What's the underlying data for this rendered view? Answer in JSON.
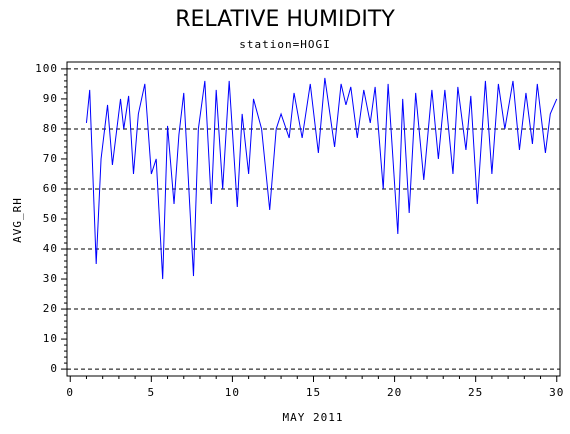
{
  "chart_data": {
    "type": "line",
    "title": "RELATIVE HUMIDITY",
    "subtitle": "station=HOGI",
    "x_label": "MAY 2011",
    "y_label": "AVG_RH",
    "x": [
      1,
      1.2,
      1.6,
      1.9,
      2.3,
      2.6,
      3.1,
      3.3,
      3.6,
      3.9,
      4.2,
      4.6,
      5.0,
      5.3,
      5.7,
      6.0,
      6.4,
      6.7,
      7.0,
      7.6,
      7.9,
      8.3,
      8.7,
      9.0,
      9.4,
      9.8,
      10.3,
      10.6,
      11.0,
      11.3,
      11.8,
      12.3,
      12.7,
      13.0,
      13.5,
      13.8,
      14.3,
      14.8,
      15.3,
      15.7,
      16.3,
      16.7,
      17.0,
      17.3,
      17.7,
      18.1,
      18.5,
      18.8,
      19.3,
      19.6,
      20.2,
      20.5,
      20.9,
      21.3,
      21.8,
      22.3,
      22.7,
      23.1,
      23.6,
      23.9,
      24.4,
      24.7,
      25.1,
      25.6,
      26.0,
      26.4,
      26.8,
      27.3,
      27.7,
      28.1,
      28.5,
      28.8,
      29.3,
      29.6,
      30.0
    ],
    "series": [
      {
        "name": "AVG_RH",
        "color": "#0000ff",
        "values": [
          82,
          93,
          35,
          70,
          88,
          68,
          90,
          80,
          91,
          65,
          85,
          95,
          65,
          70,
          30,
          81,
          55,
          78,
          92,
          31,
          80,
          96,
          55,
          93,
          60,
          96,
          54,
          85,
          65,
          90,
          80,
          53,
          80,
          85,
          77,
          92,
          77,
          95,
          72,
          97,
          74,
          95,
          88,
          94,
          77,
          93,
          82,
          94,
          60,
          95,
          45,
          90,
          52,
          92,
          63,
          93,
          70,
          93,
          65,
          94,
          73,
          91,
          55,
          96,
          65,
          95,
          80,
          96,
          73,
          92,
          75,
          95,
          72,
          85,
          90
        ]
      }
    ],
    "xlim": [
      -0.2,
      30.2
    ],
    "ylim": [
      -2.3,
      102.3
    ],
    "xticks": [
      0,
      5,
      10,
      15,
      20,
      25,
      30
    ],
    "yticks": [
      0,
      10,
      20,
      30,
      40,
      50,
      60,
      70,
      80,
      90,
      100
    ],
    "x_minor_per_tick": 5,
    "y_minor_per_tick": 5,
    "grid_lines": [
      0,
      20,
      40,
      60,
      80,
      100
    ]
  }
}
